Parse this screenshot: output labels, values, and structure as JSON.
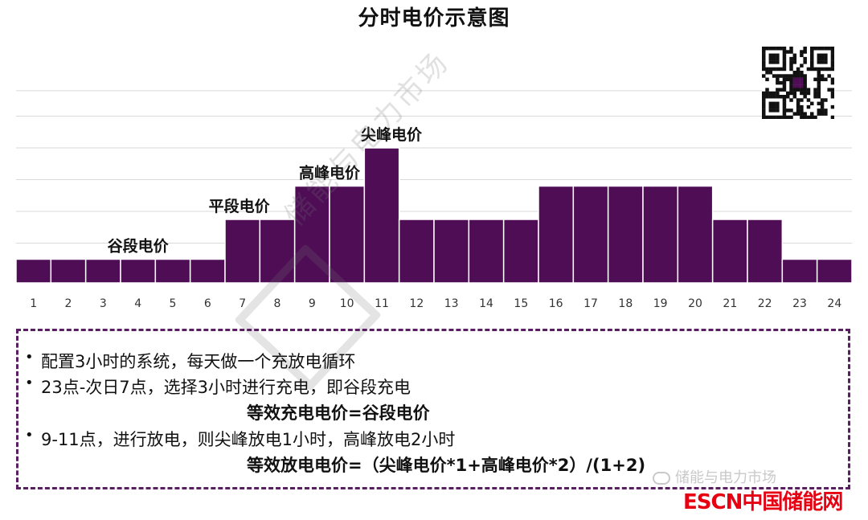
{
  "title": "分时电价示意图",
  "chart_data": {
    "type": "bar",
    "title": "分时电价示意图",
    "categories": [
      "1",
      "2",
      "3",
      "4",
      "5",
      "6",
      "7",
      "8",
      "9",
      "10",
      "11",
      "12",
      "13",
      "14",
      "15",
      "16",
      "17",
      "18",
      "19",
      "20",
      "21",
      "22",
      "23",
      "24"
    ],
    "values": [
      1,
      1,
      1,
      1,
      1,
      1,
      2,
      2,
      3,
      3,
      4,
      2,
      2,
      2,
      2,
      3,
      3,
      3,
      3,
      3,
      2,
      2,
      1,
      1
    ],
    "ylim": [
      0,
      4.2
    ],
    "grid": true,
    "bar_color": "#4e0d55",
    "annotations": [
      {
        "text": "谷段电价",
        "category": "4"
      },
      {
        "text": "平段电价",
        "category": "7"
      },
      {
        "text": "高峰电价",
        "category": "9"
      },
      {
        "text": "尖峰电价",
        "category": "11"
      }
    ]
  },
  "notes": {
    "bullet_symbol": "•",
    "bullet1": "配置3小时的系统，每天做一个充放电循环",
    "bullet2": "23点-次日7点，选择3小时进行充电，即谷段充电",
    "formula1": "等效充电电价=谷段电价",
    "bullet3": "9-11点，进行放电，则尖峰放电1小时，高峰放电2小时",
    "formula2": "等效放电电价=（尖峰电价*1+高峰电价*2）/(1+2)"
  },
  "watermark": "储能与电力市场",
  "brand": {
    "wechat": "储能与电力市场",
    "logo": "ESCN中国储能网"
  },
  "colors": {
    "bar": "#4e0d55",
    "box_border": "#5a1f62",
    "brand_red": "#e60012"
  }
}
